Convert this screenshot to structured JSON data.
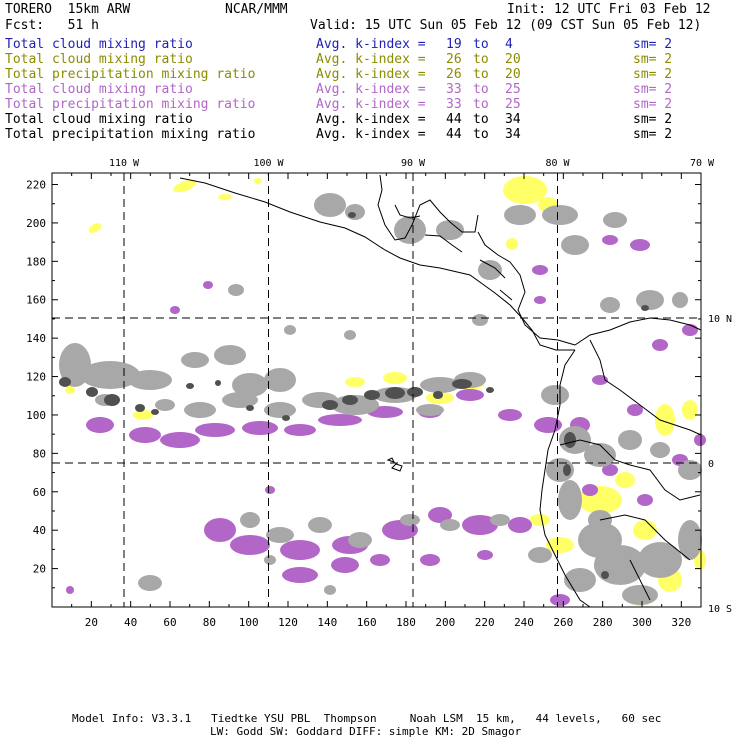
{
  "header": {
    "model": "TORERO  15km ARW",
    "center": "NCAR/MMM",
    "init": "Init: 12 UTC Fri 03 Feb 12",
    "forecast": "Fcst:   51 h",
    "valid": "Valid: 15 UTC Sun 05 Feb 12 (09 CST Sun 05 Feb 12)"
  },
  "legend": [
    {
      "field": "Total cloud mixing ratio",
      "k_label": "Avg. k-index =",
      "k_from": "19",
      "to": "to",
      "k_to": "4",
      "sm": "sm= 2",
      "color": "#1f1fb4"
    },
    {
      "field": "Total cloud mixing ratio",
      "k_label": "Avg. k-index =",
      "k_from": "26",
      "to": "to",
      "k_to": "20",
      "sm": "sm= 2",
      "color": "#8c8c00"
    },
    {
      "field": "Total precipitation mixing ratio",
      "k_label": "Avg. k-index =",
      "k_from": "26",
      "to": "to",
      "k_to": "20",
      "sm": "sm= 2",
      "color": "#8c8c00"
    },
    {
      "field": "Total cloud mixing ratio",
      "k_label": "Avg. k-index =",
      "k_from": "33",
      "to": "to",
      "k_to": "25",
      "sm": "sm= 2",
      "color": "#b266c8"
    },
    {
      "field": "Total precipitation mixing ratio",
      "k_label": "Avg. k-index =",
      "k_from": "33",
      "to": "to",
      "k_to": "25",
      "sm": "sm= 2",
      "color": "#b266c8"
    },
    {
      "field": "Total cloud mixing ratio",
      "k_label": "Avg. k-index =",
      "k_from": "44",
      "to": "to",
      "k_to": "34",
      "sm": "sm= 2",
      "color": "#000000"
    },
    {
      "field": "Total precipitation mixing ratio",
      "k_label": "Avg. k-index =",
      "k_from": "44",
      "to": "to",
      "k_to": "34",
      "sm": "sm= 2",
      "color": "#000000"
    }
  ],
  "map": {
    "lon_labels": [
      {
        "text": "110 W",
        "lon": -110
      },
      {
        "text": "100 W",
        "lon": -100
      },
      {
        "text": "90 W",
        "lon": -90
      },
      {
        "text": "80 W",
        "lon": -80
      },
      {
        "text": "70 W",
        "lon": -70
      }
    ],
    "lat_labels": [
      {
        "text": "10 N",
        "lat": 10
      },
      {
        "text": "0",
        "lat": 0
      },
      {
        "text": "10 S",
        "lat": -10
      }
    ],
    "x_ticks": [
      "20",
      "40",
      "60",
      "80",
      "100",
      "120",
      "140",
      "160",
      "180",
      "200",
      "220",
      "240",
      "260",
      "280",
      "300",
      "320"
    ],
    "y_ticks": [
      "20",
      "40",
      "60",
      "80",
      "100",
      "120",
      "140",
      "160",
      "180",
      "200",
      "220"
    ],
    "colors": {
      "gray": "#a8a8a8",
      "dark_gray": "#505050",
      "yellow": "#ffff66",
      "purple": "#b266c8",
      "coast": "#000000"
    }
  },
  "footer": {
    "line1": "Model Info: V3.3.1   Tiedtke YSU PBL  Thompson     Noah LSM  15 km,   44 levels,   60 sec",
    "line2": "LW: Godd SW: Goddard DIFF: simple KM: 2D Smagor"
  }
}
